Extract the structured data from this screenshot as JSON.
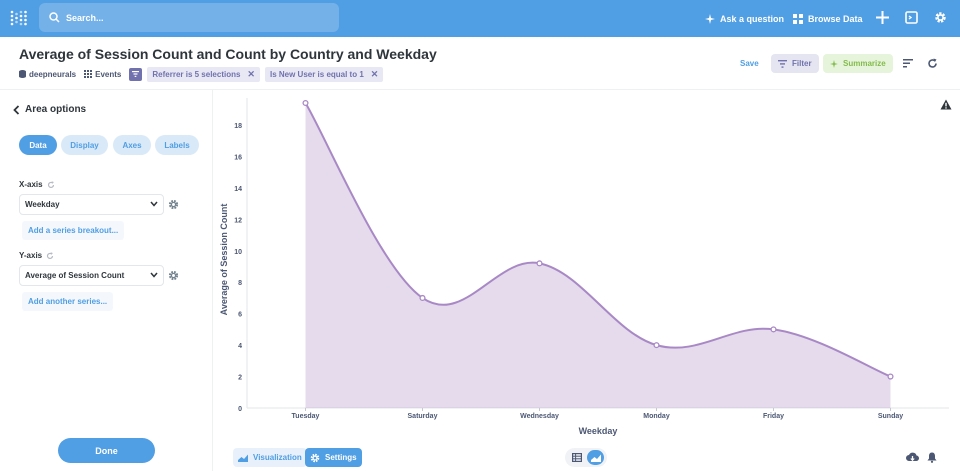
{
  "topbar": {
    "search_placeholder": "Search...",
    "ask_label": "Ask a question",
    "browse_label": "Browse Data"
  },
  "question": {
    "title": "Average of Session Count and Count by Country and Weekday",
    "database": "deepneurals",
    "table": "Events",
    "filters": [
      "Referrer is 5 selections",
      "Is New User is equal to 1"
    ],
    "save_label": "Save",
    "filter_label": "Filter",
    "summarize_label": "Summarize"
  },
  "sidebar": {
    "title": "Area options",
    "tabs": [
      "Data",
      "Display",
      "Axes",
      "Labels"
    ],
    "x_axis_label": "X-axis",
    "x_axis_value": "Weekday",
    "add_breakout_label": "Add a series breakout...",
    "y_axis_label": "Y-axis",
    "y_axis_value": "Average of Session Count",
    "add_series_label": "Add another series...",
    "done_label": "Done"
  },
  "footer": {
    "visualization_label": "Visualization",
    "settings_label": "Settings"
  },
  "colors": {
    "brand": "#509ee3",
    "series": "#a989c5",
    "filter": "#7172ad",
    "summarize": "#84bb4c"
  },
  "chart_data": {
    "type": "area",
    "categories": [
      "Tuesday",
      "Saturday",
      "Wednesday",
      "Monday",
      "Friday",
      "Sunday"
    ],
    "series": [
      {
        "values": [
          19.4,
          7.0,
          9.2,
          4.0,
          5.0,
          2.0
        ]
      }
    ],
    "xlabel": "Weekday",
    "ylabel": "Average of Session Count",
    "yticks": [
      0,
      2,
      4,
      6,
      8,
      10,
      12,
      14,
      16,
      18
    ],
    "ylim": [
      0,
      19.4
    ],
    "grid": false,
    "legend": "none"
  }
}
